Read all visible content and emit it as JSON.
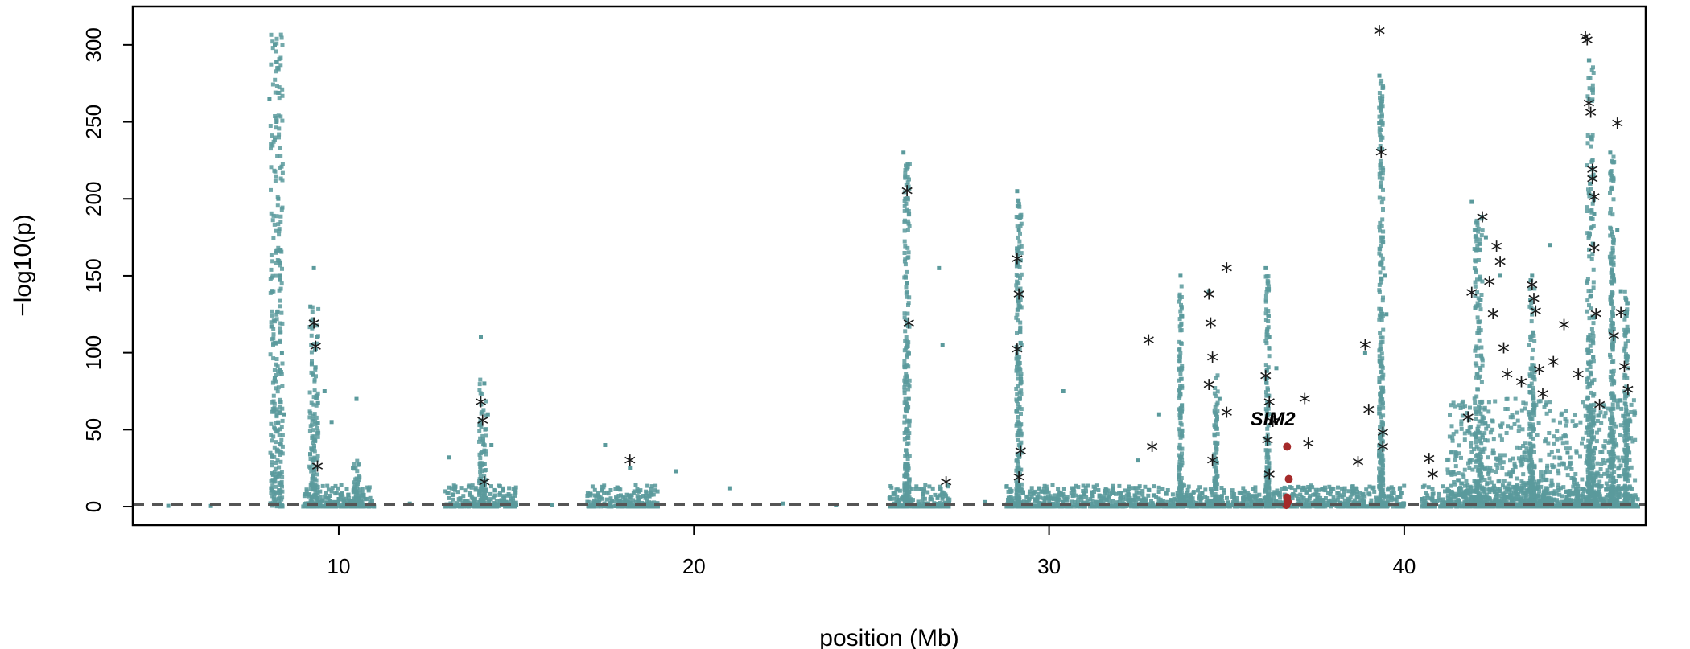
{
  "chart_data": {
    "type": "scatter",
    "title": "",
    "xlabel": "position (Mb)",
    "ylabel": "−log10(p)",
    "xlim": [
      4.2,
      46.8
    ],
    "ylim": [
      -12,
      325
    ],
    "x_ticks": [
      10,
      20,
      30,
      40
    ],
    "y_ticks": [
      0,
      50,
      100,
      150,
      200,
      250,
      300
    ],
    "threshold_line": 1.3,
    "grid": false,
    "legend": "none",
    "colors": {
      "points": "#5b9a9c",
      "lead_stars": "#1a1a1a",
      "highlight_gene": "#a52a2a",
      "threshold": "#555555"
    },
    "highlight_gene": {
      "name": "SIM2",
      "x": 36.3,
      "y": 57
    },
    "series": [
      {
        "name": "",
        "marker": "square",
        "points": [
          [
            5.2,
            0.5
          ],
          [
            6.4,
            0.4
          ],
          [
            8.05,
            265
          ],
          [
            8.2,
            300
          ],
          [
            8.25,
            250
          ],
          [
            8.3,
            200
          ],
          [
            8.35,
            150
          ],
          [
            8.4,
            100
          ],
          [
            8.45,
            60
          ],
          [
            9.2,
            130
          ],
          [
            9.3,
            155
          ],
          [
            9.4,
            110
          ],
          [
            9.6,
            75
          ],
          [
            9.8,
            55
          ],
          [
            10.5,
            70
          ],
          [
            10.4,
            25
          ],
          [
            13.1,
            32
          ],
          [
            14.0,
            110
          ],
          [
            14.1,
            80
          ],
          [
            14.2,
            60
          ],
          [
            14.3,
            40
          ],
          [
            17.5,
            40
          ],
          [
            18.2,
            25
          ],
          [
            19.5,
            23
          ],
          [
            21.0,
            12
          ],
          [
            25.9,
            230
          ],
          [
            25.95,
            200
          ],
          [
            26.0,
            145
          ],
          [
            26.05,
            70
          ],
          [
            26.9,
            155
          ],
          [
            27.0,
            105
          ],
          [
            29.1,
            205
          ],
          [
            29.15,
            180
          ],
          [
            29.2,
            160
          ],
          [
            30.4,
            75
          ],
          [
            32.5,
            30
          ],
          [
            33.1,
            60
          ],
          [
            33.7,
            150
          ],
          [
            34.5,
            140
          ],
          [
            34.8,
            70
          ],
          [
            36.1,
            155
          ],
          [
            36.2,
            110
          ],
          [
            36.4,
            90
          ],
          [
            39.3,
            280
          ],
          [
            39.35,
            260
          ],
          [
            39.4,
            175
          ],
          [
            39.45,
            150
          ],
          [
            39.5,
            125
          ],
          [
            38.9,
            100
          ],
          [
            41.9,
            198
          ],
          [
            42.3,
            175
          ],
          [
            42.7,
            150
          ],
          [
            43.6,
            150
          ],
          [
            44.1,
            170
          ],
          [
            45.2,
            290
          ],
          [
            45.25,
            240
          ],
          [
            45.3,
            220
          ],
          [
            45.35,
            190
          ],
          [
            45.8,
            230
          ],
          [
            46.0,
            180
          ],
          [
            46.1,
            140
          ],
          [
            10.0,
            5
          ],
          [
            12.0,
            2
          ],
          [
            15.0,
            1
          ],
          [
            16.0,
            1
          ],
          [
            22.5,
            2
          ],
          [
            24.0,
            1
          ],
          [
            28.2,
            3
          ],
          [
            31.0,
            8
          ],
          [
            35.5,
            10
          ],
          [
            37.5,
            8
          ],
          [
            40.5,
            5
          ],
          [
            43.0,
            20
          ],
          [
            44.6,
            35
          ],
          [
            46.3,
            60
          ]
        ]
      },
      {
        "name": "",
        "marker": "star",
        "points": [
          [
            9.3,
            118
          ],
          [
            9.35,
            103
          ],
          [
            9.4,
            25
          ],
          [
            14.0,
            67
          ],
          [
            14.05,
            55
          ],
          [
            14.1,
            15
          ],
          [
            18.2,
            29
          ],
          [
            26.0,
            204
          ],
          [
            26.05,
            118
          ],
          [
            27.1,
            15
          ],
          [
            29.1,
            160
          ],
          [
            29.15,
            137
          ],
          [
            29.1,
            101
          ],
          [
            29.2,
            35
          ],
          [
            29.15,
            18
          ],
          [
            32.8,
            107
          ],
          [
            32.9,
            38
          ],
          [
            34.5,
            137
          ],
          [
            34.55,
            118
          ],
          [
            34.6,
            96
          ],
          [
            34.5,
            78
          ],
          [
            34.6,
            29
          ],
          [
            35.0,
            154
          ],
          [
            35.0,
            60
          ],
          [
            36.1,
            84
          ],
          [
            36.2,
            67
          ],
          [
            36.3,
            54
          ],
          [
            36.15,
            42
          ],
          [
            36.2,
            20
          ],
          [
            37.2,
            69
          ],
          [
            37.3,
            40
          ],
          [
            38.7,
            28
          ],
          [
            38.9,
            104
          ],
          [
            39.0,
            62
          ],
          [
            39.3,
            308
          ],
          [
            39.35,
            229
          ],
          [
            39.4,
            47
          ],
          [
            39.4,
            38
          ],
          [
            40.7,
            30
          ],
          [
            40.8,
            20
          ],
          [
            41.8,
            57
          ],
          [
            41.9,
            138
          ],
          [
            42.2,
            187
          ],
          [
            42.4,
            145
          ],
          [
            42.5,
            124
          ],
          [
            42.6,
            168
          ],
          [
            42.7,
            158
          ],
          [
            42.8,
            102
          ],
          [
            42.9,
            85
          ],
          [
            43.3,
            80
          ],
          [
            43.6,
            143
          ],
          [
            43.65,
            134
          ],
          [
            43.7,
            126
          ],
          [
            43.8,
            88
          ],
          [
            43.9,
            72
          ],
          [
            44.2,
            93
          ],
          [
            44.5,
            117
          ],
          [
            44.9,
            85
          ],
          [
            45.1,
            304
          ],
          [
            45.15,
            302
          ],
          [
            45.2,
            261
          ],
          [
            45.25,
            255
          ],
          [
            45.3,
            218
          ],
          [
            45.3,
            212
          ],
          [
            45.35,
            200
          ],
          [
            45.35,
            167
          ],
          [
            45.4,
            124
          ],
          [
            45.5,
            65
          ],
          [
            45.9,
            110
          ],
          [
            46.0,
            248
          ],
          [
            46.1,
            125
          ],
          [
            46.2,
            90
          ],
          [
            46.3,
            75
          ]
        ]
      },
      {
        "name": "",
        "marker": "circle",
        "points": [
          [
            36.7,
            39
          ],
          [
            36.75,
            18
          ],
          [
            36.7,
            6
          ],
          [
            36.72,
            3
          ],
          [
            36.68,
            1
          ]
        ]
      }
    ]
  }
}
